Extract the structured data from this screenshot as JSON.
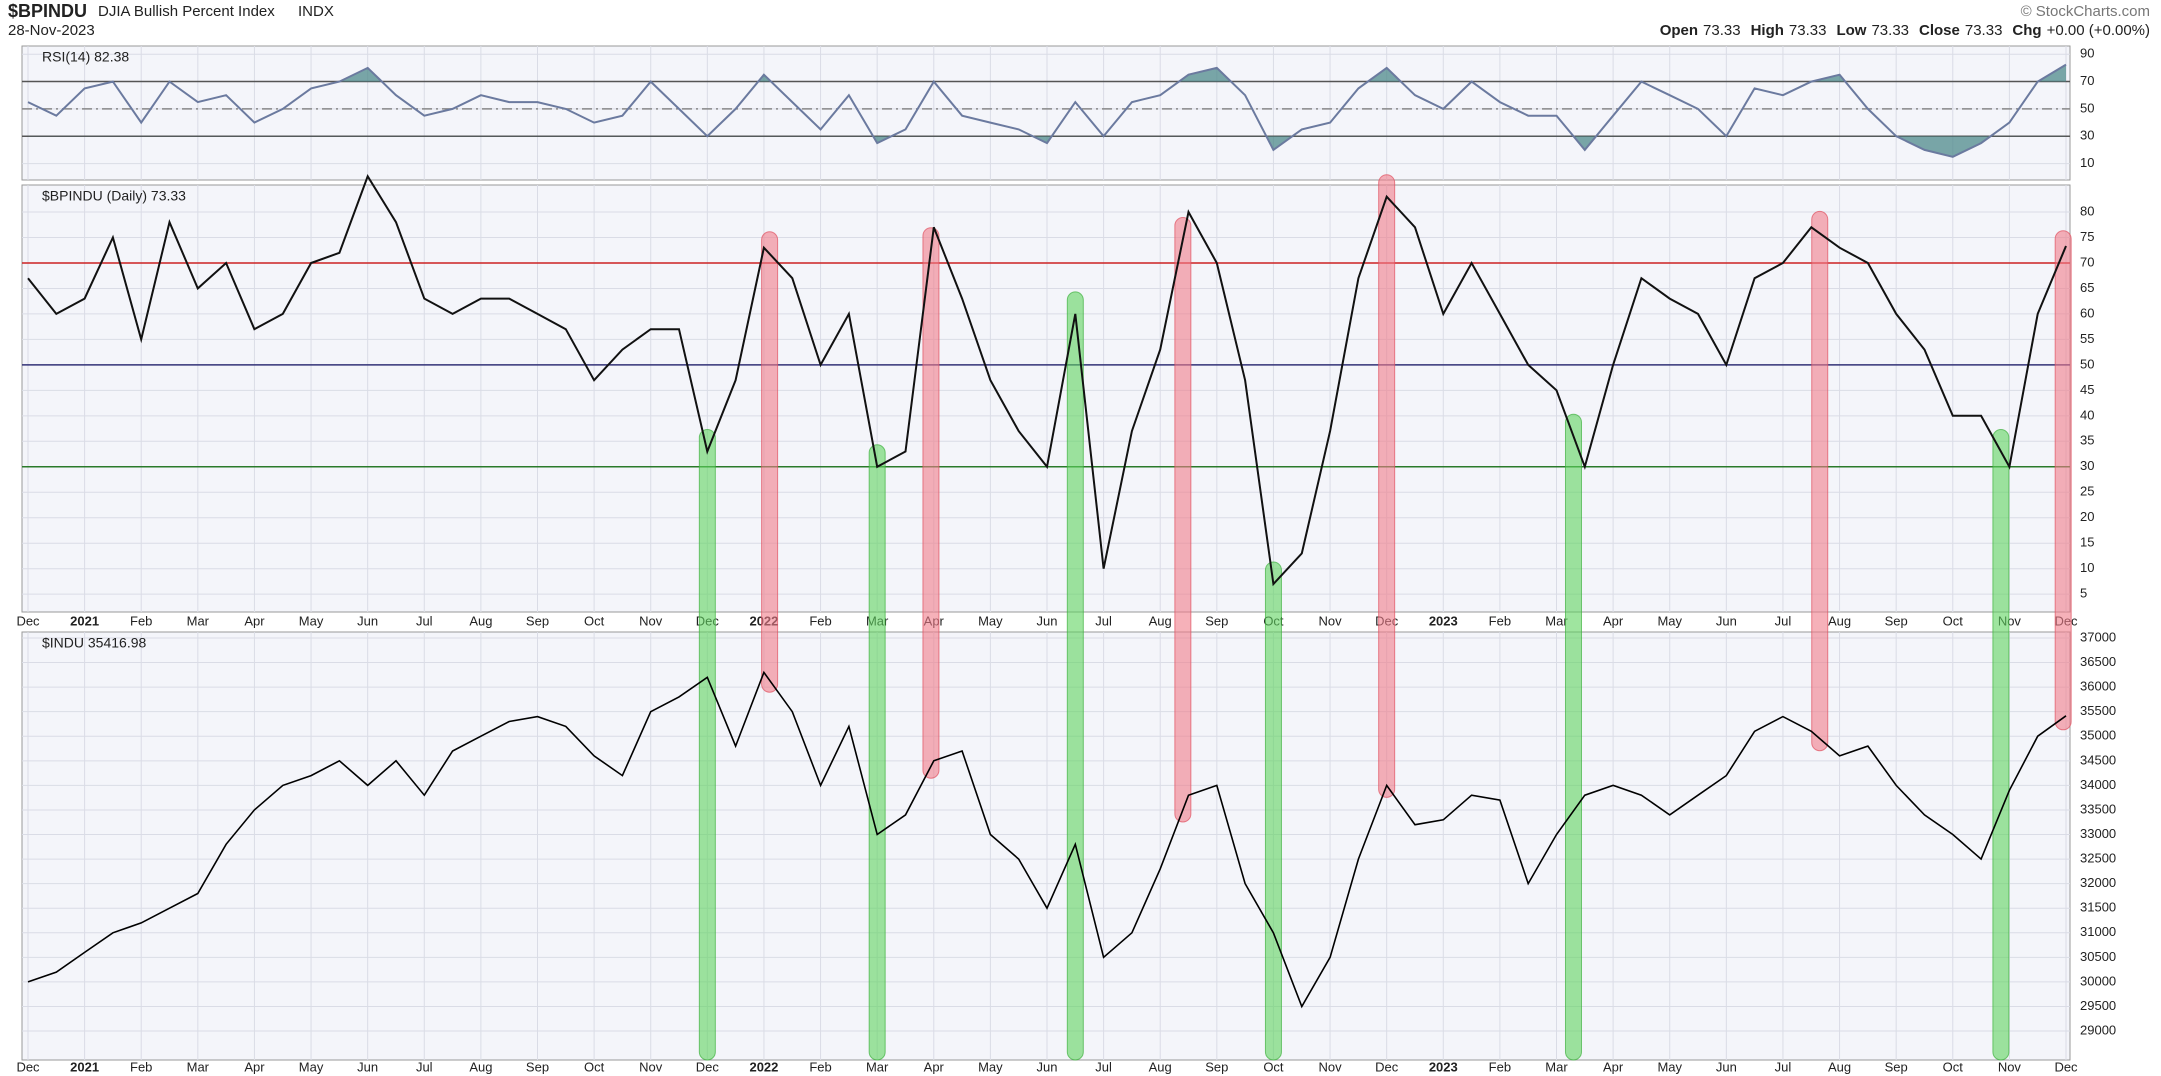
{
  "header": {
    "symbol": "$BPINDU",
    "name": "DJIA Bullish Percent Index",
    "exchange": "INDX",
    "date": "28-Nov-2023",
    "credit": "© StockCharts.com",
    "quote": [
      {
        "label": "Open",
        "value": "73.33"
      },
      {
        "label": "High",
        "value": "73.33"
      },
      {
        "label": "Low",
        "value": "73.33"
      },
      {
        "label": "Close",
        "value": "73.33"
      },
      {
        "label": "Chg",
        "value": "+0.00 (+0.00%)"
      }
    ]
  },
  "chart_data": [
    {
      "type": "line",
      "title": "RSI(14) 82.38",
      "color": "#6b7a9f",
      "fill_color": "#4f8a8b",
      "values": [
        55,
        45,
        65,
        70,
        40,
        70,
        55,
        60,
        40,
        50,
        65,
        70,
        80,
        60,
        45,
        50,
        60,
        55,
        55,
        50,
        40,
        45,
        70,
        50,
        30,
        50,
        75,
        55,
        35,
        60,
        25,
        35,
        70,
        45,
        40,
        35,
        25,
        55,
        30,
        55,
        60,
        75,
        80,
        60,
        20,
        35,
        40,
        65,
        80,
        60,
        50,
        70,
        55,
        45,
        45,
        20,
        45,
        70,
        60,
        50,
        30,
        65,
        60,
        70,
        75,
        50,
        30,
        20,
        15,
        25,
        40,
        70,
        82.38
      ],
      "ylim": [
        -2,
        96
      ],
      "yticks": [
        10,
        30,
        50,
        70,
        90
      ],
      "grid": true,
      "hlines": [
        {
          "value": 70,
          "color": "#555555"
        },
        {
          "value": 50,
          "color": "#888888"
        },
        {
          "value": 30,
          "color": "#555555"
        }
      ]
    },
    {
      "type": "line",
      "title": "$BPINDU (Daily) 73.33",
      "color": "#111111",
      "categories": [
        "Dec",
        null,
        "2021",
        null,
        "Feb",
        null,
        "Mar",
        null,
        "Apr",
        null,
        "May",
        null,
        "Jun",
        null,
        "Jul",
        null,
        "Aug",
        null,
        "Sep",
        null,
        "Oct",
        null,
        "Nov",
        null,
        "Dec",
        null,
        "2022",
        null,
        "Feb",
        null,
        "Mar",
        null,
        "Apr",
        null,
        "May",
        null,
        "Jun",
        null,
        "Jul",
        null,
        "Aug",
        null,
        "Sep",
        null,
        "Oct",
        null,
        "Nov",
        null,
        "Dec",
        null,
        "2023",
        null,
        "Feb",
        null,
        "Mar",
        null,
        "Apr",
        null,
        "May",
        null,
        "Jun",
        null,
        "Jul",
        null,
        "Aug",
        null,
        "Sep",
        null,
        "Oct",
        null,
        "Nov",
        null,
        "Dec"
      ],
      "values": [
        67,
        60,
        63,
        75,
        55,
        78,
        65,
        70,
        57,
        60,
        70,
        72,
        87,
        78,
        63,
        60,
        63,
        63,
        60,
        57,
        47,
        53,
        57,
        57,
        33,
        47,
        73,
        67,
        50,
        60,
        30,
        33,
        77,
        63,
        47,
        37,
        30,
        60,
        10,
        37,
        53,
        80,
        70,
        47,
        7,
        13,
        37,
        67,
        83,
        77,
        60,
        70,
        60,
        50,
        45,
        30,
        50,
        67,
        63,
        60,
        50,
        67,
        70,
        77,
        73,
        70,
        60,
        53,
        40,
        40,
        30,
        60,
        73.33
      ],
      "ylim": [
        1.5,
        85.3
      ],
      "yticks": [
        5,
        10,
        15,
        20,
        25,
        30,
        35,
        40,
        45,
        50,
        55,
        60,
        65,
        70,
        75,
        80
      ],
      "grid": true,
      "hlines": [
        {
          "value": 70,
          "color": "#cc2222"
        },
        {
          "value": 50,
          "color": "#333377"
        },
        {
          "value": 30,
          "color": "#2a7a2a"
        }
      ]
    },
    {
      "type": "line",
      "title": "$INDU 35416.98",
      "color": "#000000",
      "categories": [
        "Dec",
        null,
        "2021",
        null,
        "Feb",
        null,
        "Mar",
        null,
        "Apr",
        null,
        "May",
        null,
        "Jun",
        null,
        "Jul",
        null,
        "Aug",
        null,
        "Sep",
        null,
        "Oct",
        null,
        "Nov",
        null,
        "Dec",
        null,
        "2022",
        null,
        "Feb",
        null,
        "Mar",
        null,
        "Apr",
        null,
        "May",
        null,
        "Jun",
        null,
        "Jul",
        null,
        "Aug",
        null,
        "Sep",
        null,
        "Oct",
        null,
        "Nov",
        null,
        "Dec",
        null,
        "2023",
        null,
        "Feb",
        null,
        "Mar",
        null,
        "Apr",
        null,
        "May",
        null,
        "Jun",
        null,
        "Jul",
        null,
        "Aug",
        null,
        "Sep",
        null,
        "Oct",
        null,
        "Nov",
        null,
        "Dec"
      ],
      "values": [
        30000,
        30200,
        30600,
        31000,
        31200,
        31500,
        31800,
        32800,
        33500,
        34000,
        34200,
        34500,
        34000,
        34500,
        33800,
        34700,
        35000,
        35300,
        35400,
        35200,
        34600,
        34200,
        35500,
        35800,
        36200,
        34800,
        36300,
        35500,
        34000,
        35200,
        33000,
        33400,
        34500,
        34700,
        33000,
        32500,
        31500,
        32800,
        30500,
        31000,
        32300,
        33800,
        34000,
        32000,
        31000,
        29500,
        30500,
        32500,
        34000,
        33200,
        33300,
        33800,
        33700,
        32000,
        33000,
        33800,
        34000,
        33800,
        33400,
        33800,
        34200,
        35100,
        35400,
        35100,
        34600,
        34800,
        34000,
        33400,
        33000,
        32500,
        33900,
        35000,
        35416.98
      ],
      "ylim": [
        28410,
        37122
      ],
      "yticks": [
        29000,
        29500,
        30000,
        30500,
        31000,
        31500,
        32000,
        32500,
        33000,
        33500,
        34000,
        34500,
        35000,
        35500,
        36000,
        36500,
        37000
      ],
      "grid": true
    }
  ]
}
